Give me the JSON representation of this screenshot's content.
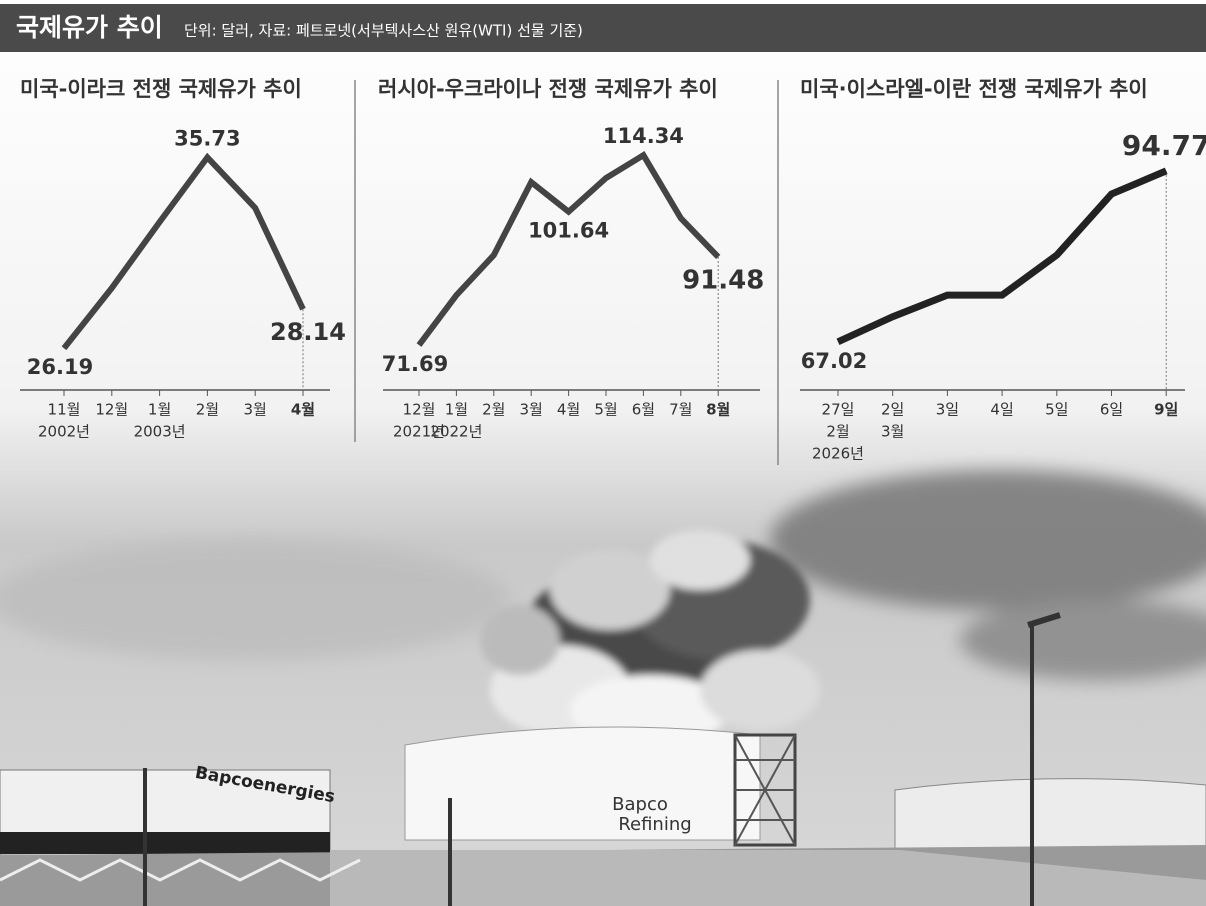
{
  "header": {
    "title": "국제유가 추이",
    "subtitle": "단위: 달러, 자료: 페트로넷(서부텍사스산 원유(WTI) 선물 기준)"
  },
  "chart_data": [
    {
      "type": "line",
      "title": "미국-이라크 전쟁 국제유가 추이",
      "categories": [
        "11월",
        "12월",
        "1월",
        "2월",
        "3월",
        "4월"
      ],
      "category_sublabels": [
        [
          "2002년",
          null,
          "2003년",
          null,
          null,
          null
        ]
      ],
      "values": [
        26.19,
        29.2,
        32.5,
        35.73,
        33.2,
        28.14
      ],
      "value_labels": [
        "26.19",
        null,
        null,
        "35.73",
        null,
        "28.14"
      ],
      "ylim": [
        24.1,
        37.1
      ],
      "color": "#444444"
    },
    {
      "type": "line",
      "title": "러시아-우크라이나 전쟁 국제유가 추이",
      "categories": [
        "12월",
        "1월",
        "2월",
        "3월",
        "4월",
        "5월",
        "6월",
        "7월",
        "8월"
      ],
      "category_sublabels": [
        [
          "2021년",
          "2022년",
          null,
          null,
          null,
          null,
          null,
          null,
          null
        ]
      ],
      "values": [
        71.69,
        82.9,
        91.9,
        108.3,
        101.64,
        109.2,
        114.34,
        100.2,
        91.48
      ],
      "value_labels": [
        "71.69",
        null,
        null,
        null,
        "101.64",
        null,
        "114.34",
        null,
        "91.48"
      ],
      "ylim": [
        61.6,
        120
      ],
      "color": "#444444"
    },
    {
      "type": "line",
      "title": "미국·이스라엘-이란 전쟁 국제유가 추이",
      "categories": [
        "27일",
        "2일",
        "3일",
        "4일",
        "5일",
        "6일",
        "9일"
      ],
      "category_sublabels": [
        [
          "2월",
          "3월",
          null,
          null,
          null,
          null,
          null
        ],
        [
          "2026년",
          null,
          null,
          null,
          null,
          null,
          null
        ]
      ],
      "values": [
        67.02,
        71.1,
        74.6,
        74.6,
        81.1,
        91.0,
        94.77
      ],
      "value_labels": [
        "67.02",
        null,
        null,
        null,
        null,
        null,
        "94.77"
      ],
      "ylim": [
        59.2,
        101.4
      ],
      "color": "#222222"
    }
  ]
}
